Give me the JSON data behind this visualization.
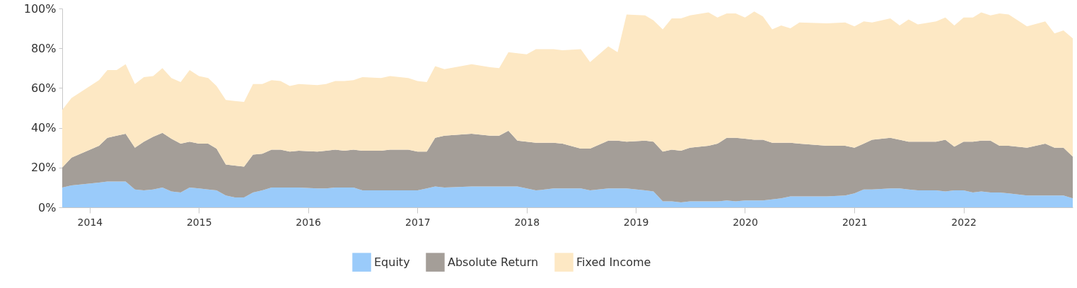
{
  "chart_data": {
    "type": "area",
    "stacked": true,
    "grid": false,
    "legend": "bottom",
    "x": [
      "2013-10",
      "2013-11",
      "2014-02",
      "2014-03",
      "2014-04",
      "2014-05",
      "2014-06",
      "2014-07",
      "2014-08",
      "2014-09",
      "2014-10",
      "2014-11",
      "2014-12",
      "2015-01",
      "2015-02",
      "2015-03",
      "2015-04",
      "2015-05",
      "2015-06",
      "2015-07",
      "2015-08",
      "2015-09",
      "2015-10",
      "2015-11",
      "2015-12",
      "2016-02",
      "2016-03",
      "2016-04",
      "2016-05",
      "2016-06",
      "2016-07",
      "2016-09",
      "2016-10",
      "2016-12",
      "2017-01",
      "2017-02",
      "2017-03",
      "2017-04",
      "2017-07",
      "2017-09",
      "2017-10",
      "2017-11",
      "2017-12",
      "2018-01",
      "2018-02",
      "2018-04",
      "2018-05",
      "2018-07",
      "2018-08",
      "2018-10",
      "2018-11",
      "2018-12",
      "2019-02",
      "2019-03",
      "2019-04",
      "2019-05",
      "2019-06",
      "2019-07",
      "2019-09",
      "2019-10",
      "2019-11",
      "2019-12",
      "2020-01",
      "2020-02",
      "2020-03",
      "2020-04",
      "2020-05",
      "2020-06",
      "2020-07",
      "2020-10",
      "2020-12",
      "2021-01",
      "2021-02",
      "2021-03",
      "2021-05",
      "2021-06",
      "2021-07",
      "2021-08",
      "2021-10",
      "2021-11",
      "2021-12",
      "2022-01",
      "2022-02",
      "2022-03",
      "2022-04",
      "2022-05",
      "2022-06",
      "2022-08",
      "2022-10",
      "2022-11",
      "2022-12",
      "2023-01"
    ],
    "xlim": [
      "2013-10",
      "2023-01"
    ],
    "xticks": [
      "2014",
      "2015",
      "2016",
      "2017",
      "2018",
      "2019",
      "2020",
      "2021",
      "2022"
    ],
    "ylim": [
      0,
      100
    ],
    "yticks": [
      {
        "value": 0,
        "label": "0%"
      },
      {
        "value": 20,
        "label": "20%"
      },
      {
        "value": 40,
        "label": "40%"
      },
      {
        "value": 60,
        "label": "60%"
      },
      {
        "value": 80,
        "label": "80%"
      },
      {
        "value": 100,
        "label": "100%"
      }
    ],
    "series": [
      {
        "name": "Equity",
        "color": "#9acbfa",
        "values": [
          10,
          11,
          12.5,
          13,
          13,
          13,
          9,
          8.5,
          9,
          10,
          8,
          7.5,
          10,
          9.5,
          9,
          8.5,
          6,
          5,
          5,
          7.5,
          8.5,
          10,
          10,
          10,
          10,
          9.5,
          9.5,
          10,
          10,
          10,
          8.5,
          8.5,
          8.5,
          8.5,
          8.5,
          9.5,
          10.5,
          10,
          10.5,
          10.5,
          10.5,
          10.5,
          10.5,
          9.5,
          8.5,
          9.5,
          9.5,
          9.5,
          8.5,
          9.5,
          9.5,
          9.5,
          8.5,
          8,
          3,
          3,
          2.5,
          3,
          3,
          3,
          3.5,
          3,
          3.5,
          3.5,
          3.5,
          4,
          4.5,
          5.5,
          5.5,
          5.5,
          6,
          7,
          9,
          9,
          9.5,
          9.5,
          9,
          8.5,
          8.5,
          8,
          8.5,
          8.5,
          7.5,
          8,
          7.5,
          7.5,
          7,
          6,
          6,
          6,
          6,
          4.5
        ]
      },
      {
        "name": "Absolute Return",
        "color": "#a49e98",
        "values": [
          10,
          14,
          18.5,
          22,
          23,
          24,
          21,
          24.5,
          26.5,
          27.5,
          26.5,
          24.5,
          23,
          22.5,
          23,
          21,
          15.5,
          16,
          15.5,
          19,
          18.5,
          19,
          19,
          18,
          18.5,
          18.5,
          19,
          19,
          18.5,
          19,
          20,
          20,
          20.5,
          20.5,
          19.5,
          18.5,
          24.5,
          26,
          26.5,
          25.5,
          25.5,
          28,
          23,
          23.5,
          24,
          23,
          22.5,
          20,
          21,
          24,
          24,
          23.5,
          25,
          25,
          25,
          26,
          26,
          27,
          28,
          29,
          31.5,
          32,
          31,
          30.5,
          30.5,
          28.5,
          28,
          27,
          26.5,
          25.5,
          25,
          23,
          23,
          25,
          25.5,
          24.5,
          24,
          24.5,
          24.5,
          26,
          22,
          24.5,
          25.5,
          25.5,
          26,
          23.5,
          24,
          24,
          26,
          24,
          24,
          21
        ]
      },
      {
        "name": "Fixed Income",
        "color": "#fde8c4",
        "values": [
          29,
          30,
          33,
          34,
          33,
          35,
          32,
          32.5,
          30.5,
          32.5,
          30.5,
          31,
          36,
          34,
          33,
          31.5,
          32.5,
          32.5,
          32.5,
          35.5,
          35,
          35,
          34.5,
          33,
          33.5,
          33.5,
          33.5,
          34.5,
          35,
          35,
          37,
          36.5,
          37,
          36,
          35.5,
          35,
          36,
          33.5,
          35,
          34.5,
          34,
          39.5,
          44,
          44,
          47,
          47,
          47,
          50,
          43.5,
          47.5,
          44.5,
          64,
          63,
          61,
          61.5,
          66,
          66.5,
          66.5,
          67,
          63.5,
          62.5,
          62.5,
          61,
          64.5,
          62,
          57,
          59,
          57.5,
          61,
          61.5,
          62,
          61,
          61.5,
          59,
          60,
          57.5,
          61.5,
          59,
          60.5,
          61.5,
          61,
          62.5,
          62.5,
          64.5,
          63,
          66.5,
          66,
          61,
          61.5,
          57.5,
          59,
          59.5
        ]
      }
    ]
  }
}
